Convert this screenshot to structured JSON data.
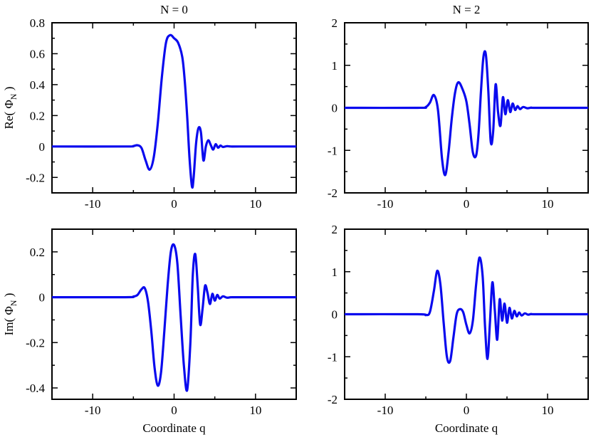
{
  "chart_data": [
    {
      "type": "line",
      "title": "N = 0",
      "xlabel": "",
      "ylabel": "Re( Φ_N )",
      "xlim": [
        -15,
        15
      ],
      "ylim": [
        -0.3,
        0.8
      ],
      "xticks": [
        -10,
        0,
        10
      ],
      "xtick_labels": [
        "-10",
        "0",
        "10"
      ],
      "yticks": [
        -0.2,
        0,
        0.2,
        0.4,
        0.6,
        0.8
      ],
      "ytick_labels": [
        "-0.2",
        "0",
        "0.2",
        "0.4",
        "0.6",
        "0.8"
      ],
      "color": "#0a0aee",
      "series": [
        {
          "x": [
            -15,
            -6,
            -5,
            -4.5,
            -4,
            -3.5,
            -3.0,
            -2.5,
            -2.0,
            -1.5,
            -1.0,
            -0.5,
            0.0,
            0.5,
            1.0,
            1.3,
            1.6,
            1.9,
            2.2,
            2.4,
            2.7,
            3.0,
            3.3,
            3.6,
            3.9,
            4.2,
            4.5,
            4.8,
            5.1,
            5.4,
            5.7,
            6.0,
            6.5,
            7.0,
            8,
            15
          ],
          "y": [
            0,
            0,
            0.003,
            0.008,
            -0.01,
            -0.09,
            -0.15,
            -0.07,
            0.15,
            0.45,
            0.67,
            0.72,
            0.7,
            0.67,
            0.58,
            0.43,
            0.2,
            -0.08,
            -0.26,
            -0.2,
            0.02,
            0.12,
            0.09,
            -0.09,
            0.0,
            0.04,
            0.01,
            -0.02,
            0.015,
            -0.008,
            0.006,
            -0.003,
            0.002,
            0,
            0,
            0
          ]
        }
      ]
    },
    {
      "type": "line",
      "title": "N = 2",
      "xlabel": "",
      "ylabel": "",
      "xlim": [
        -15,
        15
      ],
      "ylim": [
        -2,
        2
      ],
      "xticks": [
        -10,
        0,
        10
      ],
      "xtick_labels": [
        "-10",
        "0",
        "10"
      ],
      "yticks": [
        -2,
        -1,
        0,
        1,
        2
      ],
      "ytick_labels": [
        "-2",
        "-1",
        "0",
        "1",
        "2"
      ],
      "color": "#0a0aee",
      "series": [
        {
          "x": [
            -15,
            -6,
            -5,
            -4.5,
            -4.0,
            -3.5,
            -3.0,
            -2.6,
            -2.2,
            -1.8,
            -1.4,
            -1.0,
            -0.5,
            0.0,
            0.4,
            0.8,
            1.2,
            1.5,
            1.8,
            2.1,
            2.4,
            2.7,
            3.0,
            3.3,
            3.6,
            3.9,
            4.2,
            4.5,
            4.8,
            5.1,
            5.4,
            5.7,
            6.0,
            6.3,
            6.6,
            7.0,
            7.5,
            8.0,
            8.5,
            15
          ],
          "y": [
            0,
            0,
            0.02,
            0.12,
            0.3,
            -0.05,
            -1.2,
            -1.58,
            -1.05,
            -0.25,
            0.35,
            0.6,
            0.45,
            0.15,
            -0.4,
            -1.05,
            -1.12,
            -0.6,
            0.4,
            1.2,
            1.25,
            0.4,
            -0.8,
            -0.55,
            0.55,
            -0.1,
            -0.42,
            0.25,
            -0.15,
            0.18,
            -0.1,
            0.1,
            -0.05,
            0.04,
            -0.03,
            0.02,
            -0.01,
            0.005,
            0,
            0
          ]
        }
      ]
    },
    {
      "type": "line",
      "title": "",
      "xlabel": "Coordinate q",
      "ylabel": "Im( Φ_N )",
      "xlim": [
        -15,
        15
      ],
      "ylim": [
        -0.45,
        0.3
      ],
      "xticks": [
        -10,
        0,
        10
      ],
      "xtick_labels": [
        "-10",
        "0",
        "10"
      ],
      "yticks": [
        -0.4,
        -0.2,
        0,
        0.2
      ],
      "ytick_labels": [
        "-0.4",
        "-0.2",
        "0",
        "0.2"
      ],
      "color": "#0a0aee",
      "series": [
        {
          "x": [
            -15,
            -6,
            -5,
            -4.5,
            -4.0,
            -3.6,
            -3.2,
            -2.8,
            -2.4,
            -2.0,
            -1.6,
            -1.2,
            -0.8,
            -0.4,
            0.0,
            0.4,
            0.8,
            1.2,
            1.6,
            2.0,
            2.3,
            2.6,
            2.9,
            3.2,
            3.5,
            3.8,
            4.1,
            4.4,
            4.7,
            5.0,
            5.3,
            5.6,
            6.0,
            6.5,
            7.0,
            8,
            15
          ],
          "y": [
            0,
            0,
            0.003,
            0.01,
            0.035,
            0.04,
            -0.02,
            -0.15,
            -0.31,
            -0.39,
            -0.33,
            -0.15,
            0.05,
            0.2,
            0.23,
            0.15,
            -0.08,
            -0.3,
            -0.41,
            -0.2,
            0.1,
            0.19,
            0.05,
            -0.12,
            -0.05,
            0.05,
            0.02,
            -0.03,
            0.015,
            -0.015,
            0.01,
            -0.006,
            0.004,
            -0.002,
            0,
            0,
            0
          ]
        }
      ]
    },
    {
      "type": "line",
      "title": "",
      "xlabel": "Coordinate q",
      "ylabel": "",
      "xlim": [
        -15,
        15
      ],
      "ylim": [
        -2,
        2
      ],
      "xticks": [
        -10,
        0,
        10
      ],
      "xtick_labels": [
        "-10",
        "0",
        "10"
      ],
      "yticks": [
        -2,
        -1,
        0,
        1,
        2
      ],
      "ytick_labels": [
        "-2",
        "-1",
        "0",
        "1",
        "2"
      ],
      "color": "#0a0aee",
      "series": [
        {
          "x": [
            -15,
            -6,
            -5,
            -4.5,
            -4.0,
            -3.6,
            -3.2,
            -2.8,
            -2.4,
            -2.0,
            -1.6,
            -1.2,
            -0.8,
            -0.4,
            0.0,
            0.4,
            0.8,
            1.2,
            1.6,
            2.0,
            2.3,
            2.6,
            2.9,
            3.2,
            3.5,
            3.8,
            4.1,
            4.4,
            4.7,
            5.0,
            5.3,
            5.6,
            5.9,
            6.2,
            6.5,
            6.8,
            7.2,
            7.6,
            8.0,
            8.5,
            15
          ],
          "y": [
            0,
            0,
            -0.02,
            0.05,
            0.55,
            1.02,
            0.7,
            -0.2,
            -1.0,
            -1.1,
            -0.55,
            0.0,
            0.12,
            0.05,
            -0.25,
            -0.45,
            -0.15,
            0.7,
            1.33,
            0.9,
            -0.3,
            -1.05,
            -0.2,
            0.75,
            0.1,
            -0.6,
            0.35,
            -0.15,
            0.25,
            -0.2,
            0.15,
            -0.1,
            0.08,
            -0.05,
            0.04,
            -0.03,
            0.02,
            -0.01,
            0.005,
            0,
            0
          ]
        }
      ]
    }
  ]
}
